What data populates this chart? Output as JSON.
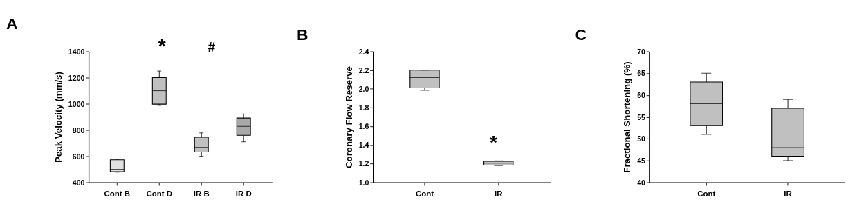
{
  "chart_data": [
    {
      "type": "box",
      "title": "A",
      "ylabel": "Peak Velocity (mm/s)",
      "categories": [
        "Cont B",
        "Cont D",
        "IR B",
        "IR D"
      ],
      "colors": [
        "#e0e0e0",
        "#c0c0c0",
        "#c0c0c0",
        "#a8a8a8"
      ],
      "boxes": [
        {
          "low": 478,
          "q1": 482,
          "median": 500,
          "q3": 573,
          "high": 578
        },
        {
          "low": 988,
          "q1": 997,
          "median": 1100,
          "q3": 1200,
          "high": 1250
        },
        {
          "low": 600,
          "q1": 632,
          "median": 668,
          "q3": 745,
          "high": 778
        },
        {
          "low": 710,
          "q1": 760,
          "median": 828,
          "q3": 892,
          "high": 922
        }
      ],
      "ylim": [
        400,
        1400
      ],
      "yticks": [
        400,
        600,
        800,
        1000,
        1200,
        1400
      ],
      "annotations": [
        "*",
        "#"
      ]
    },
    {
      "type": "box",
      "title": "B",
      "ylabel": "Coronary Flow Reserve",
      "categories": [
        "Cont",
        "IR"
      ],
      "colors": [
        "#c0c0c0",
        "#c0c0c0"
      ],
      "boxes": [
        {
          "low": 1.985,
          "q1": 2.01,
          "median": 2.12,
          "q3": 2.2,
          "high": 2.2
        },
        {
          "low": 1.18,
          "q1": 1.185,
          "median": 1.205,
          "q3": 1.225,
          "high": 1.23
        }
      ],
      "ylim": [
        1.0,
        2.4
      ],
      "yticks": [
        {
          "value": 1.0,
          "label": "1.0"
        },
        {
          "value": 1.2,
          "label": "1.2"
        },
        {
          "value": 1.4,
          "label": "1.4"
        },
        {
          "value": 1.6,
          "label": "1.6"
        },
        {
          "value": 1.8,
          "label": "1.8"
        },
        {
          "value": 2.0,
          "label": "2.0"
        },
        {
          "value": 2.2,
          "label": "2.2"
        },
        {
          "value": 2.4,
          "label": "2.4"
        }
      ],
      "annotations": [
        "*"
      ]
    },
    {
      "type": "box",
      "title": "C",
      "ylabel": "Fractional Shortening (%)",
      "categories": [
        "Cont",
        "IR"
      ],
      "colors": [
        "#c0c0c0",
        "#c0c0c0"
      ],
      "boxes": [
        {
          "low": 51,
          "q1": 53,
          "median": 58,
          "q3": 63,
          "high": 65
        },
        {
          "low": 45,
          "q1": 46,
          "median": 48,
          "q3": 57,
          "high": 59
        }
      ],
      "ylim": [
        40,
        70
      ],
      "yticks": [
        40,
        45,
        50,
        55,
        60,
        65,
        70
      ]
    }
  ]
}
